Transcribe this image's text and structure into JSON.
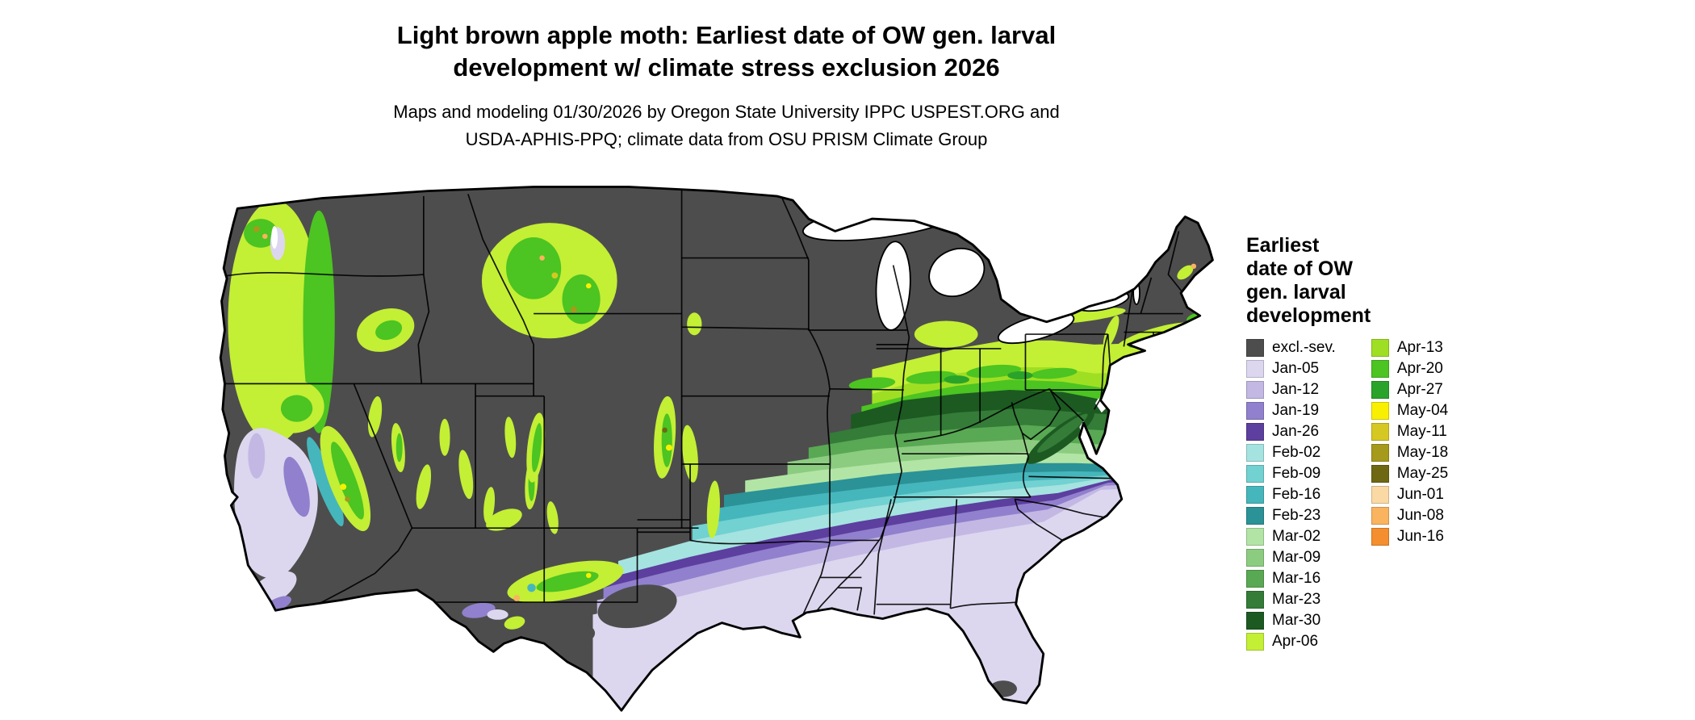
{
  "title": {
    "line1": "Light brown apple moth: Earliest date of OW gen. larval",
    "line2": "development w/ climate stress exclusion 2026"
  },
  "subtitle": {
    "line1": "Maps and modeling 01/30/2026 by Oregon State University IPPC USPEST.ORG and",
    "line2": "USDA-APHIS-PPQ; climate data from OSU PRISM Climate Group"
  },
  "legend": {
    "title_lines": [
      "Earliest",
      "date of OW",
      "gen. larval",
      "development"
    ],
    "columns": [
      15,
      10
    ],
    "entries": [
      {
        "label": "excl.-sev.",
        "color": "excl_sev"
      },
      {
        "label": "Jan-05",
        "color": "Jan-05"
      },
      {
        "label": "Jan-12",
        "color": "Jan-12"
      },
      {
        "label": "Jan-19",
        "color": "Jan-19"
      },
      {
        "label": "Jan-26",
        "color": "Jan-26"
      },
      {
        "label": "Feb-02",
        "color": "Feb-02"
      },
      {
        "label": "Feb-09",
        "color": "Feb-09"
      },
      {
        "label": "Feb-16",
        "color": "Feb-16"
      },
      {
        "label": "Feb-23",
        "color": "Feb-23"
      },
      {
        "label": "Mar-02",
        "color": "Mar-02"
      },
      {
        "label": "Mar-09",
        "color": "Mar-09"
      },
      {
        "label": "Mar-16",
        "color": "Mar-16"
      },
      {
        "label": "Mar-23",
        "color": "Mar-23"
      },
      {
        "label": "Mar-30",
        "color": "Mar-30"
      },
      {
        "label": "Apr-06",
        "color": "Apr-06"
      },
      {
        "label": "Apr-13",
        "color": "Apr-13"
      },
      {
        "label": "Apr-20",
        "color": "Apr-20"
      },
      {
        "label": "Apr-27",
        "color": "Apr-27"
      },
      {
        "label": "May-04",
        "color": "May-04"
      },
      {
        "label": "May-11",
        "color": "May-11"
      },
      {
        "label": "May-18",
        "color": "May-18"
      },
      {
        "label": "May-25",
        "color": "May-25"
      },
      {
        "label": "Jun-01",
        "color": "Jun-01"
      },
      {
        "label": "Jun-08",
        "color": "Jun-08"
      },
      {
        "label": "Jun-16",
        "color": "Jun-16"
      }
    ]
  },
  "colors": {
    "excl_sev": "#4d4d4d",
    "Jan-05": "#dcd7ef",
    "Jan-12": "#c3b8e4",
    "Jan-19": "#9180cd",
    "Jan-26": "#5c3f9e",
    "Feb-02": "#a5e3e0",
    "Feb-09": "#72d1d1",
    "Feb-16": "#45b6bc",
    "Feb-23": "#2b9297",
    "Mar-02": "#b2e5a5",
    "Mar-09": "#8ccc80",
    "Mar-16": "#59a854",
    "Mar-23": "#347c38",
    "Mar-30": "#1c5a22",
    "Apr-06": "#c3ef35",
    "Apr-13": "#9fdf23",
    "Apr-20": "#4cc421",
    "Apr-27": "#2aa32a",
    "May-04": "#f8f000",
    "May-11": "#d6c822",
    "May-18": "#a59a1c",
    "May-25": "#6e6813",
    "Jun-01": "#fbd9a4",
    "Jun-08": "#fab35e",
    "Jun-16": "#f58e2e"
  },
  "map": {
    "region": "continental United States",
    "band_order_north_to_south": [
      "Apr-06",
      "Apr-13",
      "Apr-20",
      "Mar-30",
      "Mar-23",
      "Mar-16",
      "Mar-09",
      "Mar-02",
      "Feb-23",
      "Feb-16",
      "Feb-09",
      "Feb-02",
      "Jan-26",
      "Jan-19",
      "Jan-12",
      "Jan-05"
    ],
    "base_region_color": "excl_sev"
  }
}
